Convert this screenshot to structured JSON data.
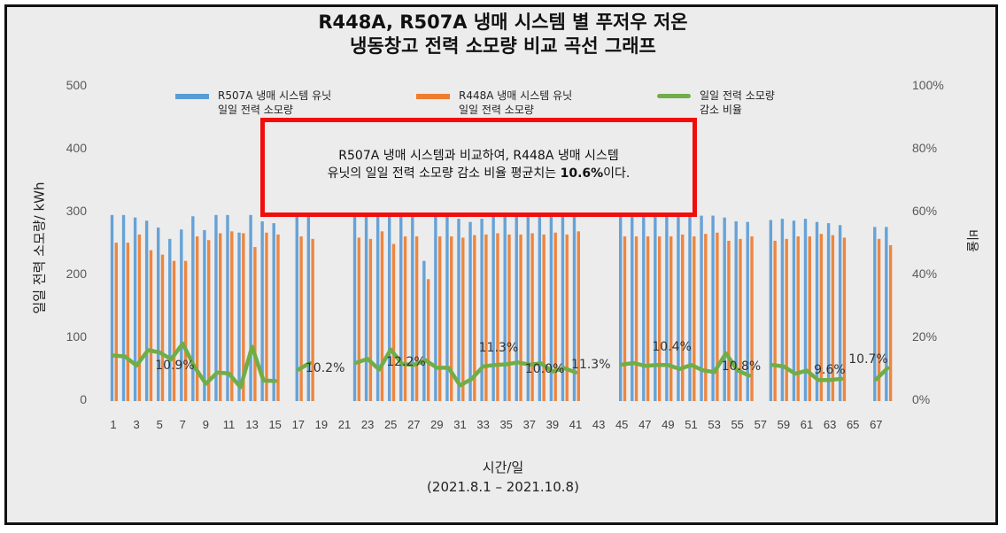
{
  "chart_data": {
    "type": "bar+line",
    "title": "R448A, R507A 냉매 시스템 별 푸저우 저온 냉동창고 전력 소모량 비교 곡선 그래프",
    "title_lines": [
      "R448A, R507A 냉매 시스템 별 푸저우 저온",
      "냉동창고 전력 소모량 비교 곡선 그래프"
    ],
    "xlabel": "시간/일",
    "xlabel_sub": "(2021.8.1 – 2021.10.8)",
    "ylabel": "일일 전력 소모량/ kWh",
    "ylabel_right": "비율",
    "ylim": [
      0,
      500
    ],
    "ylim_right": [
      0,
      100
    ],
    "yticks": [
      "0",
      "100",
      "200",
      "300",
      "400",
      "500"
    ],
    "yticks_right": [
      "0%",
      "20%",
      "40%",
      "60%",
      "80%",
      "100%"
    ],
    "xticks": [
      "1",
      "3",
      "5",
      "7",
      "9",
      "11",
      "13",
      "15",
      "17",
      "19",
      "21",
      "23",
      "25",
      "27",
      "29",
      "31",
      "33",
      "35",
      "37",
      "39",
      "41",
      "43",
      "45",
      "47",
      "49",
      "51",
      "53",
      "55",
      "57",
      "59",
      "61",
      "63",
      "65",
      "67"
    ],
    "x": [
      1,
      2,
      3,
      4,
      5,
      6,
      7,
      8,
      9,
      10,
      11,
      12,
      13,
      14,
      15,
      16,
      17,
      18,
      19,
      20,
      21,
      22,
      23,
      24,
      25,
      26,
      27,
      28,
      29,
      30,
      31,
      32,
      33,
      34,
      35,
      36,
      37,
      38,
      39,
      40,
      41,
      42,
      43,
      44,
      45,
      46,
      47,
      48,
      49,
      50,
      51,
      52,
      53,
      54,
      55,
      56,
      57,
      58,
      59,
      60,
      61,
      62,
      63,
      64,
      65,
      66,
      67,
      68
    ],
    "legend_position": "top",
    "grid": false,
    "series": [
      {
        "name": "R507A 냉매 시스템 유닛 일일 전력 소모량",
        "type": "bar",
        "axis": "left",
        "color": "#5b9bd5",
        "values": [
          296,
          296,
          292,
          287,
          276,
          258,
          273,
          294,
          272,
          296,
          296,
          268,
          296,
          286,
          283,
          null,
          293,
          293,
          null,
          null,
          null,
          296,
          298,
          300,
          299,
          297,
          296,
          223,
          293,
          293,
          290,
          285,
          290,
          303,
          300,
          302,
          302,
          301,
          296,
          296,
          297,
          null,
          null,
          null,
          297,
          298,
          295,
          296,
          296,
          295,
          296,
          295,
          295,
          292,
          286,
          285,
          null,
          288,
          290,
          287,
          290,
          285,
          283,
          280,
          null,
          null,
          277,
          277
        ]
      },
      {
        "name": "R448A 냉매 시스템 유닛 일일 전력 소모량",
        "type": "bar",
        "axis": "left",
        "color": "#ed7d31",
        "values": [
          252,
          252,
          265,
          240,
          233,
          223,
          223,
          262,
          256,
          267,
          270,
          267,
          245,
          268,
          265,
          null,
          262,
          258,
          null,
          null,
          null,
          260,
          258,
          270,
          250,
          262,
          262,
          194,
          262,
          262,
          260,
          264,
          265,
          267,
          265,
          265,
          267,
          265,
          268,
          265,
          270,
          null,
          null,
          null,
          262,
          262,
          262,
          262,
          262,
          265,
          262,
          266,
          268,
          255,
          258,
          262,
          null,
          255,
          258,
          262,
          262,
          266,
          264,
          260,
          null,
          null,
          258,
          248
        ]
      },
      {
        "name": "일일 전력 소모량 감소 비율",
        "type": "line",
        "axis": "right",
        "color": "#70ad47",
        "values": [
          14.5,
          14.2,
          11.3,
          16.2,
          15.5,
          13.3,
          18.3,
          11.0,
          5.5,
          9.1,
          8.8,
          4.4,
          17.3,
          6.5,
          6.4,
          null,
          10.0,
          12.1,
          null,
          null,
          null,
          12.2,
          13.4,
          10.0,
          16.4,
          11.8,
          11.5,
          13.0,
          10.6,
          10.6,
          5.0,
          7.0,
          11.0,
          11.5,
          11.7,
          12.3,
          11.6,
          12.0,
          9.4,
          10.5,
          9.1,
          null,
          null,
          null,
          11.6,
          12.1,
          11.2,
          11.5,
          11.5,
          10.2,
          11.5,
          9.8,
          9.2,
          15.2,
          9.8,
          8.1,
          null,
          11.5,
          11.0,
          8.7,
          9.7,
          6.7,
          6.7,
          7.1,
          null,
          null,
          6.9,
          10.5
        ]
      }
    ],
    "data_labels": [
      {
        "text": "10.9%",
        "x_day": 6,
        "y_pct": 10.9
      },
      {
        "text": "10.2%",
        "x_day": 19,
        "y_pct": 10.2
      },
      {
        "text": "12.2%",
        "x_day": 26,
        "y_pct": 12.2
      },
      {
        "text": "11.3%",
        "x_day": 34,
        "y_pct": 16.5
      },
      {
        "text": "10.0%",
        "x_day": 38,
        "y_pct": 10.0
      },
      {
        "text": "11.3%",
        "x_day": 42,
        "y_pct": 11.3
      },
      {
        "text": "10.4%",
        "x_day": 49,
        "y_pct": 16.8
      },
      {
        "text": "10.8%",
        "x_day": 55,
        "y_pct": 10.8
      },
      {
        "text": "9.6%",
        "x_day": 63,
        "y_pct": 9.6
      },
      {
        "text": "10.7%",
        "x_day": 66,
        "y_pct": 13.0
      }
    ],
    "annotation": {
      "line1": "R507A 냉매 시스템과 비교하여, R448A 냉매 시스템",
      "line2_prefix": "유닛의 일일 전력 소모량 감소 비율 평균치는 ",
      "line2_bold": "10.6%",
      "line2_suffix": "이다.",
      "border_color": "#f20d0d"
    }
  },
  "legend": {
    "items": [
      {
        "line1": "R507A 냉매 시스템 유닛",
        "line2": "일일 전력 소모량",
        "color": "#5b9bd5"
      },
      {
        "line1": "R448A 냉매 시스템 유닛",
        "line2": "일일 전력 소모량",
        "color": "#ed7d31"
      },
      {
        "line1": "일일 전력 소모량",
        "line2": "감소 비율",
        "color": "#70ad47"
      }
    ]
  }
}
